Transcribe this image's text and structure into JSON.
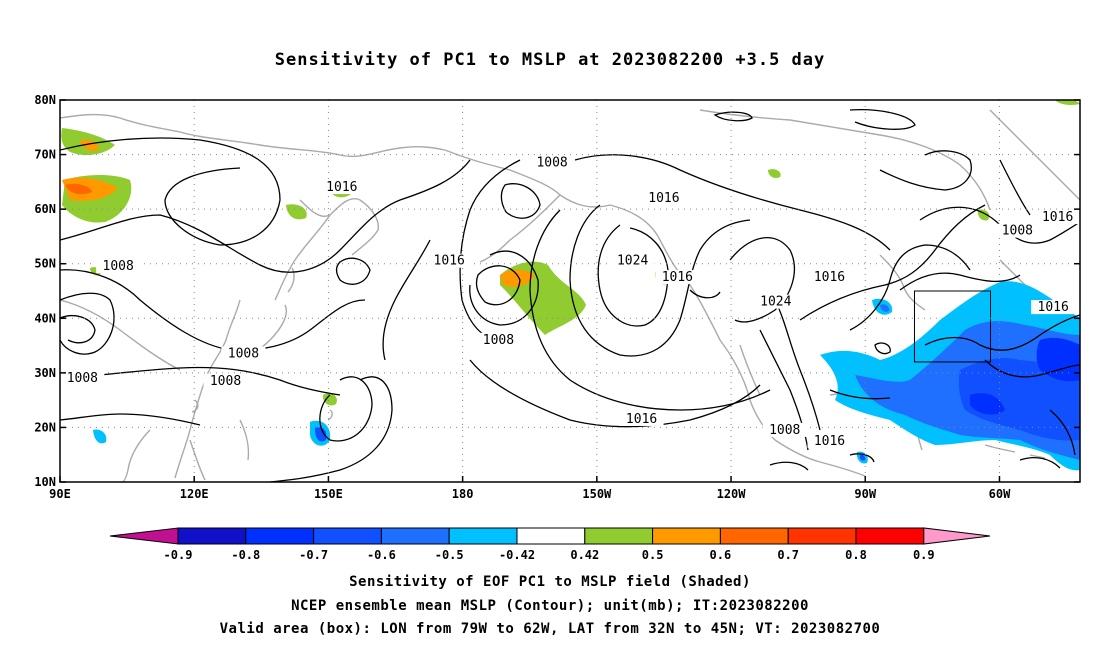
{
  "title": "Sensitivity of PC1 to MSLP at 2023082200 +3.5 day",
  "map": {
    "lon_min": 90,
    "lon_max": 318,
    "lat_min": 10,
    "lat_max": 80,
    "lat_ticks": [
      {
        "value": 80,
        "label": "80N"
      },
      {
        "value": 70,
        "label": "70N"
      },
      {
        "value": 60,
        "label": "60N"
      },
      {
        "value": 50,
        "label": "50N"
      },
      {
        "value": 40,
        "label": "40N"
      },
      {
        "value": 30,
        "label": "30N"
      },
      {
        "value": 20,
        "label": "20N"
      },
      {
        "value": 10,
        "label": "10N"
      }
    ],
    "lon_ticks": [
      {
        "value": 90,
        "label": "90E"
      },
      {
        "value": 120,
        "label": "120E"
      },
      {
        "value": 150,
        "label": "150E"
      },
      {
        "value": 180,
        "label": "180"
      },
      {
        "value": 210,
        "label": "150W"
      },
      {
        "value": 240,
        "label": "120W"
      },
      {
        "value": 270,
        "label": "90W"
      },
      {
        "value": 300,
        "label": "60W"
      }
    ],
    "valid_box": {
      "lon_min": 281,
      "lon_max": 298,
      "lat_min": 32,
      "lat_max": 45
    },
    "contour_labels": [
      {
        "lon": 153,
        "lat": 63.5,
        "text": "1016"
      },
      {
        "lon": 103,
        "lat": 49,
        "text": "1008"
      },
      {
        "lon": 131,
        "lat": 33,
        "text": "1008"
      },
      {
        "lon": 127,
        "lat": 28,
        "text": "1008"
      },
      {
        "lon": 95,
        "lat": 28.5,
        "text": "1008"
      },
      {
        "lon": 177,
        "lat": 50,
        "text": "1016"
      },
      {
        "lon": 200,
        "lat": 68,
        "text": "1008"
      },
      {
        "lon": 188,
        "lat": 35.5,
        "text": "1008"
      },
      {
        "lon": 225,
        "lat": 61.5,
        "text": "1016"
      },
      {
        "lon": 218,
        "lat": 50,
        "text": "1024"
      },
      {
        "lon": 228,
        "lat": 47,
        "text": "1016"
      },
      {
        "lon": 250,
        "lat": 42.5,
        "text": "1024"
      },
      {
        "lon": 262,
        "lat": 47,
        "text": "1016"
      },
      {
        "lon": 304,
        "lat": 55.5,
        "text": "1008"
      },
      {
        "lon": 313,
        "lat": 58,
        "text": "1016"
      },
      {
        "lon": 312,
        "lat": 41.5,
        "text": "1016"
      },
      {
        "lon": 220,
        "lat": 21,
        "text": "1016"
      },
      {
        "lon": 252,
        "lat": 19,
        "text": "1008"
      },
      {
        "lon": 262,
        "lat": 17,
        "text": "1016"
      }
    ]
  },
  "colorbar": {
    "labels": [
      "-0.9",
      "-0.8",
      "-0.7",
      "-0.6",
      "-0.5",
      "-0.42",
      "0.42",
      "0.5",
      "0.6",
      "0.7",
      "0.8",
      "0.9"
    ],
    "colors": [
      "#1010c8",
      "#0030ff",
      "#1050ff",
      "#2070ff",
      "#00c0ff",
      "#ffffff",
      "#90cc30",
      "#ff9900",
      "#ff6600",
      "#ff3300",
      "#ff0000"
    ],
    "low_end_color": "#c0108f",
    "high_end_color": "#ff99cc"
  },
  "footer": {
    "line1": "Sensitivity of EOF PC1 to MSLP field (Shaded)",
    "line2": "NCEP ensemble mean MSLP (Contour); unit(mb); IT:2023082200",
    "line3": "Valid area (box): LON from 79W to 62W, LAT from 32N to 45N; VT: 2023082700"
  }
}
